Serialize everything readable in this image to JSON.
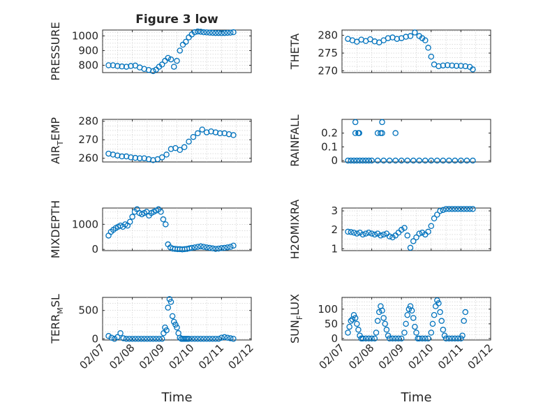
{
  "title": "Figure 3 low",
  "colors": {
    "marker": "#0072bd",
    "axis": "#262626",
    "grid": "#c8c8c8"
  },
  "chart_data": [
    {
      "type": "scatter",
      "title": "Figure 3 low",
      "ylabel": "PRESSURE",
      "ylabel_sub": "",
      "xlim": [
        "02/07",
        "02/12"
      ],
      "ylim": [
        750,
        1040
      ],
      "yticks": [
        800,
        900,
        1000
      ],
      "grid": true,
      "x_days": [
        0.2,
        0.35,
        0.5,
        0.65,
        0.8,
        0.95,
        1.1,
        1.25,
        1.4,
        1.55,
        1.7,
        1.8,
        1.9,
        2.0,
        2.1,
        2.2,
        2.3,
        2.4,
        2.5,
        2.6,
        2.7,
        2.8,
        2.9,
        3.0,
        3.1,
        3.2,
        3.3,
        3.4,
        3.5,
        3.6,
        3.7,
        3.8,
        3.9,
        4.0,
        4.1,
        4.2,
        4.3,
        4.4
      ],
      "y": [
        800,
        800,
        795,
        792,
        790,
        795,
        798,
        785,
        775,
        768,
        760,
        770,
        790,
        805,
        830,
        850,
        840,
        790,
        830,
        900,
        940,
        960,
        990,
        1010,
        1025,
        1030,
        1028,
        1025,
        1024,
        1022,
        1021,
        1020,
        1020,
        1019,
        1020,
        1021,
        1022,
        1025
      ]
    },
    {
      "type": "scatter",
      "title": "",
      "ylabel": "THETA",
      "ylabel_sub": "",
      "xlim": [
        "02/07",
        "02/12"
      ],
      "ylim": [
        269.5,
        281.5
      ],
      "yticks": [
        270,
        275,
        280
      ],
      "grid": true,
      "x_days": [
        0.2,
        0.35,
        0.5,
        0.65,
        0.8,
        0.95,
        1.1,
        1.25,
        1.4,
        1.55,
        1.7,
        1.85,
        2.0,
        2.15,
        2.3,
        2.45,
        2.6,
        2.7,
        2.8,
        2.9,
        3.0,
        3.1,
        3.25,
        3.4,
        3.55,
        3.7,
        3.85,
        4.0,
        4.15,
        4.3,
        4.4
      ],
      "y": [
        279,
        278.6,
        278.2,
        278.8,
        278.4,
        278.9,
        278.3,
        278,
        278.6,
        279.2,
        279.4,
        279,
        279.2,
        279.6,
        279.8,
        280.8,
        279.8,
        279.2,
        278.6,
        276.5,
        274,
        271.8,
        271.3,
        271.5,
        271.6,
        271.5,
        271.4,
        271.4,
        271.3,
        271.1,
        270.4
      ]
    },
    {
      "type": "scatter",
      "title": "",
      "ylabel": "AIR",
      "ylabel_sub": "T",
      "ylabel_after": "EMP",
      "xlim": [
        "02/07",
        "02/12"
      ],
      "ylim": [
        258,
        281
      ],
      "yticks": [
        260,
        270,
        280
      ],
      "grid": true,
      "x_days": [
        0.2,
        0.35,
        0.5,
        0.65,
        0.8,
        0.95,
        1.1,
        1.25,
        1.4,
        1.55,
        1.7,
        1.85,
        2.0,
        2.15,
        2.3,
        2.45,
        2.6,
        2.75,
        2.9,
        3.05,
        3.2,
        3.35,
        3.5,
        3.65,
        3.8,
        3.95,
        4.1,
        4.25,
        4.4
      ],
      "y": [
        262.5,
        262,
        261.5,
        261,
        261,
        260.5,
        260.2,
        260,
        260,
        259.5,
        259,
        259.5,
        260.5,
        262,
        265,
        265.5,
        264.5,
        266,
        269,
        271.5,
        273.5,
        275.5,
        274,
        274.5,
        274,
        273.5,
        273.5,
        273,
        272.5
      ]
    },
    {
      "type": "scatter",
      "title": "",
      "ylabel": "RAINFALL",
      "ylabel_sub": "",
      "xlim": [
        "02/07",
        "02/12"
      ],
      "ylim": [
        -0.01,
        0.3
      ],
      "yticks": [
        0,
        0.1,
        0.2
      ],
      "grid": false,
      "x_days": [
        0.2,
        0.3,
        0.4,
        0.5,
        0.6,
        0.7,
        0.8,
        0.9,
        1.0,
        1.2,
        1.4,
        1.6,
        1.8,
        2.0,
        2.2,
        2.4,
        2.6,
        2.8,
        3.0,
        3.2,
        3.4,
        3.6,
        3.8,
        4.0,
        4.2,
        4.4,
        0.45,
        0.55,
        0.58,
        1.2,
        1.3,
        1.35,
        1.8,
        0.45,
        1.35
      ],
      "y": [
        0,
        0,
        0,
        0,
        0,
        0,
        0,
        0,
        0,
        0,
        0,
        0,
        0,
        0,
        0,
        0,
        0,
        0,
        0,
        0,
        0,
        0,
        0,
        0,
        0,
        0,
        0.2,
        0.2,
        0.2,
        0.2,
        0.2,
        0.2,
        0.2,
        0.28,
        0.28
      ]
    },
    {
      "type": "scatter",
      "title": "",
      "ylabel": "MIXDEPTH",
      "ylabel_sub": "",
      "xlim": [
        "02/07",
        "02/12"
      ],
      "ylim": [
        -50,
        1650
      ],
      "yticks": [
        0,
        1000
      ],
      "grid": true,
      "x_days": [
        0.2,
        0.28,
        0.36,
        0.44,
        0.52,
        0.6,
        0.68,
        0.76,
        0.84,
        0.92,
        1.0,
        1.08,
        1.16,
        1.24,
        1.32,
        1.4,
        1.48,
        1.56,
        1.64,
        1.72,
        1.8,
        1.88,
        1.96,
        2.04,
        2.12,
        2.2,
        2.28,
        2.36,
        2.44,
        2.52,
        2.6,
        2.68,
        2.76,
        2.84,
        2.92,
        3.0,
        3.1,
        3.2,
        3.3,
        3.4,
        3.5,
        3.6,
        3.7,
        3.8,
        3.9,
        4.0,
        4.1,
        4.2,
        4.3,
        4.4
      ],
      "y": [
        550,
        700,
        780,
        850,
        900,
        950,
        900,
        1000,
        950,
        1100,
        1300,
        1500,
        1600,
        1450,
        1400,
        1450,
        1500,
        1350,
        1450,
        1500,
        1550,
        1600,
        1500,
        1200,
        1000,
        200,
        80,
        30,
        20,
        10,
        10,
        0,
        10,
        20,
        40,
        60,
        80,
        100,
        120,
        100,
        80,
        60,
        40,
        20,
        30,
        50,
        60,
        80,
        100,
        150
      ]
    },
    {
      "type": "scatter",
      "title": "",
      "ylabel": "H2OMIXRA",
      "ylabel_sub": "",
      "xlim": [
        "02/07",
        "02/12"
      ],
      "ylim": [
        0.9,
        3.15
      ],
      "yticks": [
        1,
        2,
        3
      ],
      "grid": true,
      "x_days": [
        0.2,
        0.3,
        0.4,
        0.5,
        0.6,
        0.7,
        0.8,
        0.9,
        1.0,
        1.1,
        1.2,
        1.3,
        1.4,
        1.5,
        1.6,
        1.7,
        1.8,
        1.9,
        2.0,
        2.1,
        2.2,
        2.3,
        2.4,
        2.5,
        2.6,
        2.7,
        2.8,
        2.9,
        3.0,
        3.1,
        3.2,
        3.3,
        3.4,
        3.5,
        3.6,
        3.7,
        3.8,
        3.9,
        4.0,
        4.1,
        4.2,
        4.3,
        4.4
      ],
      "y": [
        1.9,
        1.88,
        1.85,
        1.8,
        1.85,
        1.75,
        1.8,
        1.85,
        1.8,
        1.75,
        1.8,
        1.7,
        1.75,
        1.8,
        1.65,
        1.6,
        1.7,
        1.85,
        2.0,
        2.1,
        1.7,
        1.05,
        1.4,
        1.6,
        1.8,
        1.85,
        1.75,
        1.9,
        2.2,
        2.6,
        2.8,
        3.0,
        3.05,
        3.1,
        3.1,
        3.1,
        3.1,
        3.1,
        3.1,
        3.1,
        3.1,
        3.1,
        3.1
      ]
    },
    {
      "type": "scatter",
      "title": "",
      "ylabel": "TERR",
      "ylabel_sub": "M",
      "ylabel_after": "SL",
      "xlim": [
        "02/07",
        "02/12"
      ],
      "ylim": [
        -20,
        730
      ],
      "yticks": [
        0,
        500
      ],
      "grid": true,
      "x_days": [
        0.2,
        0.3,
        0.4,
        0.5,
        0.6,
        0.7,
        0.8,
        0.9,
        1.0,
        1.1,
        1.2,
        1.3,
        1.4,
        1.5,
        1.6,
        1.7,
        1.8,
        1.9,
        2.0,
        2.05,
        2.1,
        2.15,
        2.2,
        2.25,
        2.3,
        2.35,
        2.4,
        2.45,
        2.5,
        2.55,
        2.6,
        2.65,
        2.7,
        2.75,
        2.8,
        2.85,
        2.9,
        3.0,
        3.1,
        3.2,
        3.3,
        3.4,
        3.5,
        3.6,
        3.7,
        3.8,
        3.9,
        4.0,
        4.1,
        4.2,
        4.3,
        4.4
      ],
      "y": [
        50,
        20,
        0,
        30,
        100,
        10,
        0,
        0,
        0,
        0,
        0,
        0,
        0,
        0,
        0,
        0,
        0,
        0,
        0,
        100,
        200,
        150,
        550,
        700,
        650,
        400,
        300,
        250,
        200,
        100,
        20,
        0,
        0,
        0,
        0,
        0,
        0,
        0,
        0,
        0,
        0,
        0,
        0,
        0,
        0,
        0,
        0,
        20,
        30,
        20,
        10,
        0
      ]
    },
    {
      "type": "scatter",
      "title": "",
      "ylabel": "SUN",
      "ylabel_sub": "F",
      "ylabel_after": "LUX",
      "xlim": [
        "02/07",
        "02/12"
      ],
      "ylim": [
        -5,
        140
      ],
      "yticks": [
        0,
        50,
        100
      ],
      "grid": true,
      "x_days": [
        0.2,
        0.25,
        0.3,
        0.35,
        0.4,
        0.45,
        0.5,
        0.55,
        0.6,
        0.65,
        0.7,
        0.8,
        0.9,
        1.0,
        1.1,
        1.15,
        1.2,
        1.25,
        1.3,
        1.35,
        1.4,
        1.45,
        1.5,
        1.55,
        1.6,
        1.7,
        1.8,
        1.9,
        2.0,
        2.1,
        2.15,
        2.2,
        2.25,
        2.3,
        2.35,
        2.4,
        2.45,
        2.5,
        2.55,
        2.6,
        2.7,
        2.8,
        2.9,
        3.0,
        3.05,
        3.1,
        3.15,
        3.2,
        3.25,
        3.3,
        3.35,
        3.4,
        3.45,
        3.5,
        3.6,
        3.7,
        3.8,
        3.9,
        4.0,
        4.05,
        4.1,
        4.15
      ],
      "y": [
        20,
        40,
        60,
        65,
        80,
        70,
        50,
        30,
        10,
        0,
        0,
        0,
        0,
        0,
        0,
        20,
        60,
        90,
        110,
        95,
        70,
        50,
        30,
        10,
        0,
        0,
        0,
        0,
        0,
        20,
        50,
        80,
        100,
        110,
        95,
        70,
        40,
        20,
        0,
        0,
        0,
        0,
        0,
        20,
        50,
        80,
        110,
        130,
        120,
        90,
        60,
        30,
        10,
        0,
        0,
        0,
        0,
        0,
        0,
        10,
        60,
        90
      ]
    }
  ],
  "xtick_labels": [
    "02/07",
    "02/08",
    "02/09",
    "02/10",
    "02/11",
    "02/12"
  ],
  "xlabel": "Time"
}
